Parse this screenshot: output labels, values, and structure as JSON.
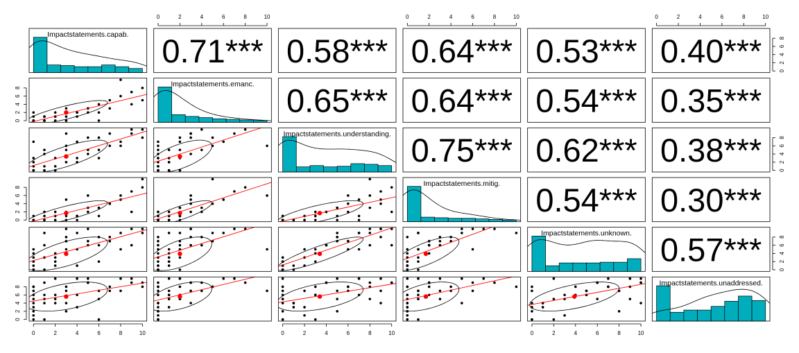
{
  "chart_data": {
    "type": "pairs",
    "variables": [
      {
        "name": "Impactstatements.capab.",
        "hist_bins": [
          0,
          1.25,
          2.5,
          3.75,
          5,
          6.25,
          7.5,
          8.75,
          10
        ],
        "hist_counts": [
          60,
          13,
          12,
          10,
          10,
          13,
          10,
          7
        ]
      },
      {
        "name": "Impactstatements.emanc.",
        "hist_bins": [
          0,
          1.25,
          2.5,
          3.75,
          5,
          6.25,
          7.5,
          8.75,
          10
        ],
        "hist_counts": [
          60,
          13,
          10,
          8,
          6,
          5,
          4,
          3
        ]
      },
      {
        "name": "Impactstatements.understanding.",
        "hist_bins": [
          0,
          1.25,
          2.5,
          3.75,
          5,
          6.25,
          7.5,
          8.75,
          10
        ],
        "hist_counts": [
          55,
          8,
          10,
          8,
          9,
          13,
          12,
          10
        ]
      },
      {
        "name": "Impactstatements.mitig.",
        "hist_bins": [
          0,
          1.25,
          2.5,
          3.75,
          5,
          6.25,
          7.5,
          8.75,
          10
        ],
        "hist_counts": [
          62,
          8,
          7,
          6,
          6,
          5,
          4,
          3
        ]
      },
      {
        "name": "Impactstatements.unknown.",
        "hist_bins": [
          0,
          1.25,
          2.5,
          3.75,
          5,
          6.25,
          7.5,
          8.75,
          10
        ],
        "hist_counts": [
          50,
          8,
          12,
          12,
          12,
          13,
          13,
          18
        ]
      },
      {
        "name": "Impactstatements.unaddressed.",
        "hist_bins": [
          0,
          1.25,
          2.5,
          3.75,
          5,
          6.25,
          7.5,
          8.75,
          10
        ],
        "hist_counts": [
          48,
          12,
          15,
          15,
          20,
          27,
          34,
          28
        ]
      }
    ],
    "correlations": [
      [
        0.71,
        0.58,
        0.64,
        0.53,
        0.4
      ],
      [
        0.65,
        0.64,
        0.54,
        0.35
      ],
      [
        0.75,
        0.62,
        0.38
      ],
      [
        0.54,
        0.3
      ],
      [
        0.57
      ]
    ],
    "correlation_labels": [
      [
        "0.71***",
        "0.58***",
        "0.64***",
        "0.53***",
        "0.40***"
      ],
      [
        "0.65***",
        "0.64***",
        "0.54***",
        "0.35***"
      ],
      [
        "0.75***",
        "0.62***",
        "0.38***"
      ],
      [
        "0.54***",
        "0.30***"
      ],
      [
        "0.57***"
      ]
    ],
    "means": [
      3,
      2,
      3.4,
      1.7,
      3.9,
      5.6
    ],
    "observations": [
      [
        0,
        0,
        0,
        0,
        0,
        0
      ],
      [
        0,
        0,
        0,
        0,
        0,
        2
      ],
      [
        0,
        0,
        0,
        0,
        1,
        4
      ],
      [
        0,
        0,
        1,
        0,
        0,
        3
      ],
      [
        1,
        0,
        0,
        0,
        0,
        0
      ],
      [
        0,
        1,
        0,
        0,
        2,
        5
      ],
      [
        0,
        0,
        0,
        1,
        0,
        7
      ],
      [
        1,
        1,
        0,
        0,
        3,
        6
      ],
      [
        2,
        0,
        1,
        0,
        1,
        4
      ],
      [
        0,
        0,
        3,
        0,
        4,
        8
      ],
      [
        3,
        1,
        2,
        1,
        5,
        7
      ],
      [
        2,
        2,
        0,
        1,
        3,
        5
      ],
      [
        1,
        0,
        4,
        2,
        6,
        9
      ],
      [
        4,
        2,
        3,
        1,
        5,
        6
      ],
      [
        3,
        0,
        6,
        2,
        7,
        8
      ],
      [
        5,
        3,
        4,
        2,
        6,
        9
      ],
      [
        2,
        1,
        0,
        0,
        2,
        10
      ],
      [
        6,
        4,
        5,
        3,
        8,
        7
      ],
      [
        4,
        2,
        7,
        1,
        9,
        10
      ],
      [
        7,
        5,
        6,
        4,
        7,
        8
      ],
      [
        5,
        3,
        8,
        6,
        10,
        9
      ],
      [
        8,
        6,
        7,
        5,
        9,
        10
      ],
      [
        6,
        2,
        8,
        3,
        6,
        5
      ],
      [
        9,
        7,
        9,
        7,
        10,
        10
      ],
      [
        10,
        8,
        10,
        8,
        10,
        9
      ],
      [
        3,
        0,
        5,
        0,
        8,
        2
      ],
      [
        0,
        0,
        2,
        0,
        3,
        1
      ],
      [
        1,
        0,
        1,
        0,
        0,
        4
      ],
      [
        2,
        1,
        3,
        2,
        4,
        6
      ],
      [
        7,
        3,
        9,
        4,
        8,
        7
      ],
      [
        4,
        1,
        2,
        0,
        1,
        3
      ],
      [
        0,
        0,
        7,
        0,
        5,
        6
      ],
      [
        5,
        2,
        5,
        3,
        7,
        10
      ],
      [
        10,
        5,
        8,
        10,
        9,
        8
      ],
      [
        8,
        10,
        6,
        6,
        5,
        7
      ],
      [
        6,
        0,
        3,
        1,
        2,
        0
      ],
      [
        0,
        2,
        0,
        0,
        0,
        8
      ],
      [
        3,
        3,
        9,
        5,
        10,
        4
      ],
      [
        9,
        4,
        10,
        2,
        6,
        9
      ],
      [
        1,
        1,
        5,
        1,
        9,
        5
      ]
    ],
    "xlim": [
      -0.4,
      10.4
    ],
    "ylim": [
      -0.4,
      10.4
    ],
    "xticks": [
      0,
      2,
      4,
      6,
      8,
      10
    ],
    "yticks": [
      0,
      2,
      4,
      6,
      8
    ],
    "point_color": "#000000",
    "mean_color": "#ff0000",
    "fit_color": "#ff0000",
    "hist_color": "#00adbc"
  }
}
